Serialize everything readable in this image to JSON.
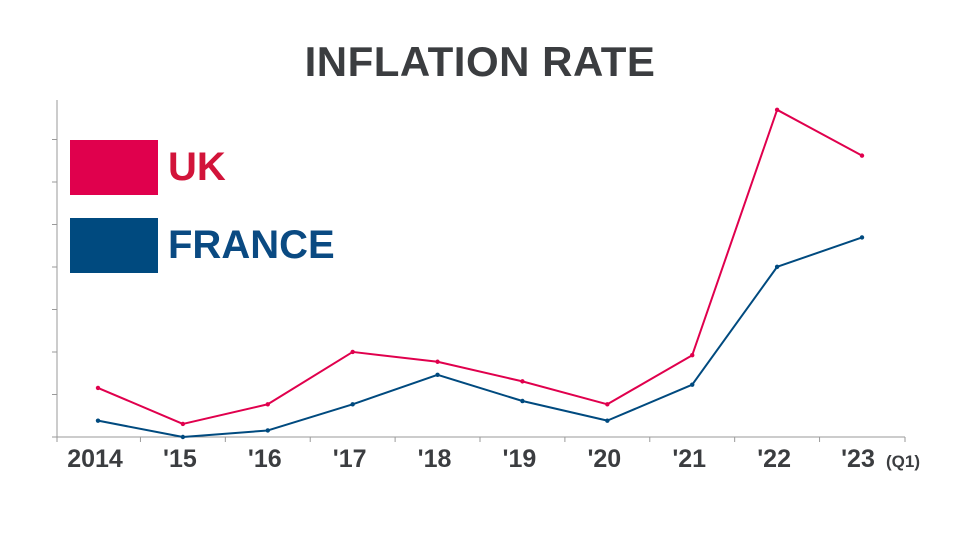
{
  "chart_data": {
    "type": "line",
    "title": "INFLATION RATE",
    "categories": [
      "2014",
      "'15",
      "'16",
      "'17",
      "'18",
      "'19",
      "'20",
      "'21",
      "'22",
      "'23"
    ],
    "category_suffix": "(Q1)",
    "xlabel": "",
    "ylabel": "",
    "ylim": [
      0,
      10.3
    ],
    "y_tick_labels_shown": false,
    "grid": false,
    "legend_placement": "top-left",
    "series": [
      {
        "name": "UK",
        "color": "#e0004d",
        "values": [
          1.5,
          0.4,
          1.0,
          2.6,
          2.3,
          1.7,
          1.0,
          2.5,
          10.0,
          8.6
        ]
      },
      {
        "name": "FRANCE",
        "color": "#004a7f",
        "values": [
          0.5,
          0.0,
          0.2,
          1.0,
          1.9,
          1.1,
          0.5,
          1.6,
          5.2,
          6.1
        ]
      }
    ]
  },
  "colors": {
    "title": "#3b3d40",
    "axis": "#9a9a9a",
    "uk_label": "#d2143a",
    "france_label": "#0a4a82"
  }
}
